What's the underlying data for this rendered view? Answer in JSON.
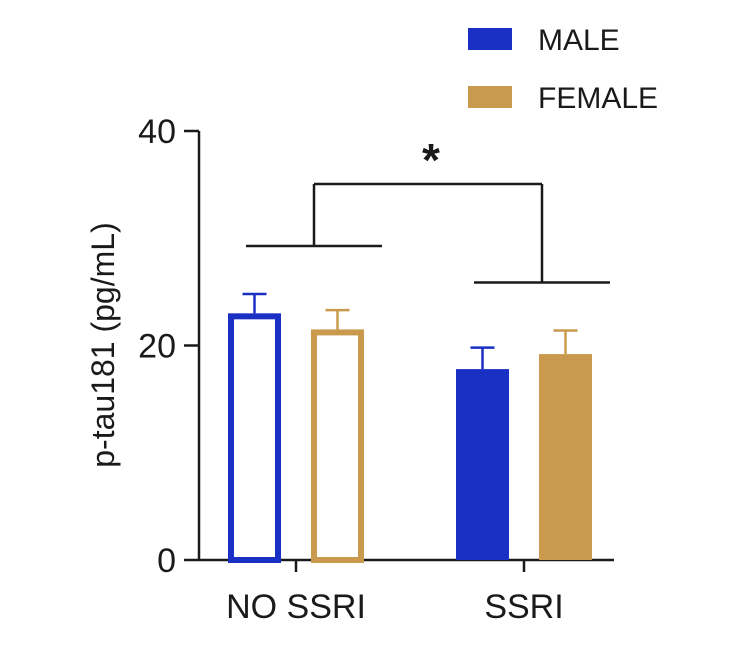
{
  "chart_data": {
    "type": "bar",
    "title": "",
    "xlabel": "",
    "ylabel": "p-tau181 (pg/mL)",
    "ylim": [
      0,
      40
    ],
    "yticks": [
      0,
      20,
      40
    ],
    "grid": false,
    "legend_position": "top-right",
    "categories": [
      "NO SSRI",
      "SSRI"
    ],
    "series": [
      {
        "name": "MALE",
        "color": "#1a2fc4",
        "values": [
          23.0,
          17.8
        ],
        "errors": [
          1.8,
          2.0
        ],
        "filled": [
          false,
          true
        ]
      },
      {
        "name": "FEMALE",
        "color": "#c99a4e",
        "values": [
          21.5,
          19.2
        ],
        "errors": [
          1.8,
          2.2
        ],
        "filled": [
          false,
          true
        ]
      }
    ],
    "annotation": {
      "text": "*",
      "compares": [
        "NO SSRI",
        "SSRI"
      ]
    }
  }
}
